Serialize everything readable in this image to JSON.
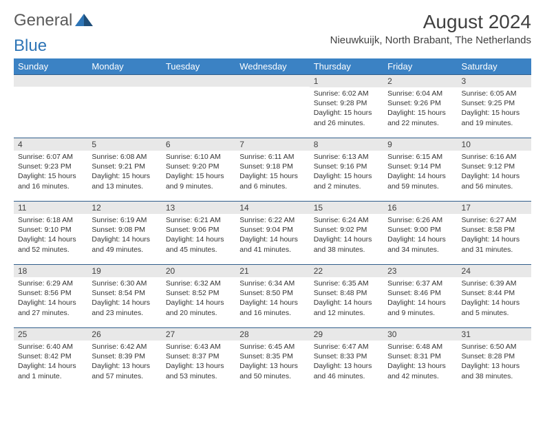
{
  "logo": {
    "textA": "General",
    "textB": "Blue"
  },
  "title": "August 2024",
  "location": "Nieuwkuijk, North Brabant, The Netherlands",
  "colors": {
    "header_bg": "#3b82c4",
    "header_text": "#ffffff",
    "daynum_bg": "#e8e8e8",
    "daynum_border": "#2e5c8a",
    "body_text": "#333333",
    "logo_gray": "#5a5a5a",
    "logo_blue": "#2e75b6"
  },
  "weekdays": [
    "Sunday",
    "Monday",
    "Tuesday",
    "Wednesday",
    "Thursday",
    "Friday",
    "Saturday"
  ],
  "weeks": [
    [
      {
        "n": "",
        "sr": "",
        "ss": "",
        "dl": ""
      },
      {
        "n": "",
        "sr": "",
        "ss": "",
        "dl": ""
      },
      {
        "n": "",
        "sr": "",
        "ss": "",
        "dl": ""
      },
      {
        "n": "",
        "sr": "",
        "ss": "",
        "dl": ""
      },
      {
        "n": "1",
        "sr": "Sunrise: 6:02 AM",
        "ss": "Sunset: 9:28 PM",
        "dl": "Daylight: 15 hours and 26 minutes."
      },
      {
        "n": "2",
        "sr": "Sunrise: 6:04 AM",
        "ss": "Sunset: 9:26 PM",
        "dl": "Daylight: 15 hours and 22 minutes."
      },
      {
        "n": "3",
        "sr": "Sunrise: 6:05 AM",
        "ss": "Sunset: 9:25 PM",
        "dl": "Daylight: 15 hours and 19 minutes."
      }
    ],
    [
      {
        "n": "4",
        "sr": "Sunrise: 6:07 AM",
        "ss": "Sunset: 9:23 PM",
        "dl": "Daylight: 15 hours and 16 minutes."
      },
      {
        "n": "5",
        "sr": "Sunrise: 6:08 AM",
        "ss": "Sunset: 9:21 PM",
        "dl": "Daylight: 15 hours and 13 minutes."
      },
      {
        "n": "6",
        "sr": "Sunrise: 6:10 AM",
        "ss": "Sunset: 9:20 PM",
        "dl": "Daylight: 15 hours and 9 minutes."
      },
      {
        "n": "7",
        "sr": "Sunrise: 6:11 AM",
        "ss": "Sunset: 9:18 PM",
        "dl": "Daylight: 15 hours and 6 minutes."
      },
      {
        "n": "8",
        "sr": "Sunrise: 6:13 AM",
        "ss": "Sunset: 9:16 PM",
        "dl": "Daylight: 15 hours and 2 minutes."
      },
      {
        "n": "9",
        "sr": "Sunrise: 6:15 AM",
        "ss": "Sunset: 9:14 PM",
        "dl": "Daylight: 14 hours and 59 minutes."
      },
      {
        "n": "10",
        "sr": "Sunrise: 6:16 AM",
        "ss": "Sunset: 9:12 PM",
        "dl": "Daylight: 14 hours and 56 minutes."
      }
    ],
    [
      {
        "n": "11",
        "sr": "Sunrise: 6:18 AM",
        "ss": "Sunset: 9:10 PM",
        "dl": "Daylight: 14 hours and 52 minutes."
      },
      {
        "n": "12",
        "sr": "Sunrise: 6:19 AM",
        "ss": "Sunset: 9:08 PM",
        "dl": "Daylight: 14 hours and 49 minutes."
      },
      {
        "n": "13",
        "sr": "Sunrise: 6:21 AM",
        "ss": "Sunset: 9:06 PM",
        "dl": "Daylight: 14 hours and 45 minutes."
      },
      {
        "n": "14",
        "sr": "Sunrise: 6:22 AM",
        "ss": "Sunset: 9:04 PM",
        "dl": "Daylight: 14 hours and 41 minutes."
      },
      {
        "n": "15",
        "sr": "Sunrise: 6:24 AM",
        "ss": "Sunset: 9:02 PM",
        "dl": "Daylight: 14 hours and 38 minutes."
      },
      {
        "n": "16",
        "sr": "Sunrise: 6:26 AM",
        "ss": "Sunset: 9:00 PM",
        "dl": "Daylight: 14 hours and 34 minutes."
      },
      {
        "n": "17",
        "sr": "Sunrise: 6:27 AM",
        "ss": "Sunset: 8:58 PM",
        "dl": "Daylight: 14 hours and 31 minutes."
      }
    ],
    [
      {
        "n": "18",
        "sr": "Sunrise: 6:29 AM",
        "ss": "Sunset: 8:56 PM",
        "dl": "Daylight: 14 hours and 27 minutes."
      },
      {
        "n": "19",
        "sr": "Sunrise: 6:30 AM",
        "ss": "Sunset: 8:54 PM",
        "dl": "Daylight: 14 hours and 23 minutes."
      },
      {
        "n": "20",
        "sr": "Sunrise: 6:32 AM",
        "ss": "Sunset: 8:52 PM",
        "dl": "Daylight: 14 hours and 20 minutes."
      },
      {
        "n": "21",
        "sr": "Sunrise: 6:34 AM",
        "ss": "Sunset: 8:50 PM",
        "dl": "Daylight: 14 hours and 16 minutes."
      },
      {
        "n": "22",
        "sr": "Sunrise: 6:35 AM",
        "ss": "Sunset: 8:48 PM",
        "dl": "Daylight: 14 hours and 12 minutes."
      },
      {
        "n": "23",
        "sr": "Sunrise: 6:37 AM",
        "ss": "Sunset: 8:46 PM",
        "dl": "Daylight: 14 hours and 9 minutes."
      },
      {
        "n": "24",
        "sr": "Sunrise: 6:39 AM",
        "ss": "Sunset: 8:44 PM",
        "dl": "Daylight: 14 hours and 5 minutes."
      }
    ],
    [
      {
        "n": "25",
        "sr": "Sunrise: 6:40 AM",
        "ss": "Sunset: 8:42 PM",
        "dl": "Daylight: 14 hours and 1 minute."
      },
      {
        "n": "26",
        "sr": "Sunrise: 6:42 AM",
        "ss": "Sunset: 8:39 PM",
        "dl": "Daylight: 13 hours and 57 minutes."
      },
      {
        "n": "27",
        "sr": "Sunrise: 6:43 AM",
        "ss": "Sunset: 8:37 PM",
        "dl": "Daylight: 13 hours and 53 minutes."
      },
      {
        "n": "28",
        "sr": "Sunrise: 6:45 AM",
        "ss": "Sunset: 8:35 PM",
        "dl": "Daylight: 13 hours and 50 minutes."
      },
      {
        "n": "29",
        "sr": "Sunrise: 6:47 AM",
        "ss": "Sunset: 8:33 PM",
        "dl": "Daylight: 13 hours and 46 minutes."
      },
      {
        "n": "30",
        "sr": "Sunrise: 6:48 AM",
        "ss": "Sunset: 8:31 PM",
        "dl": "Daylight: 13 hours and 42 minutes."
      },
      {
        "n": "31",
        "sr": "Sunrise: 6:50 AM",
        "ss": "Sunset: 8:28 PM",
        "dl": "Daylight: 13 hours and 38 minutes."
      }
    ]
  ]
}
